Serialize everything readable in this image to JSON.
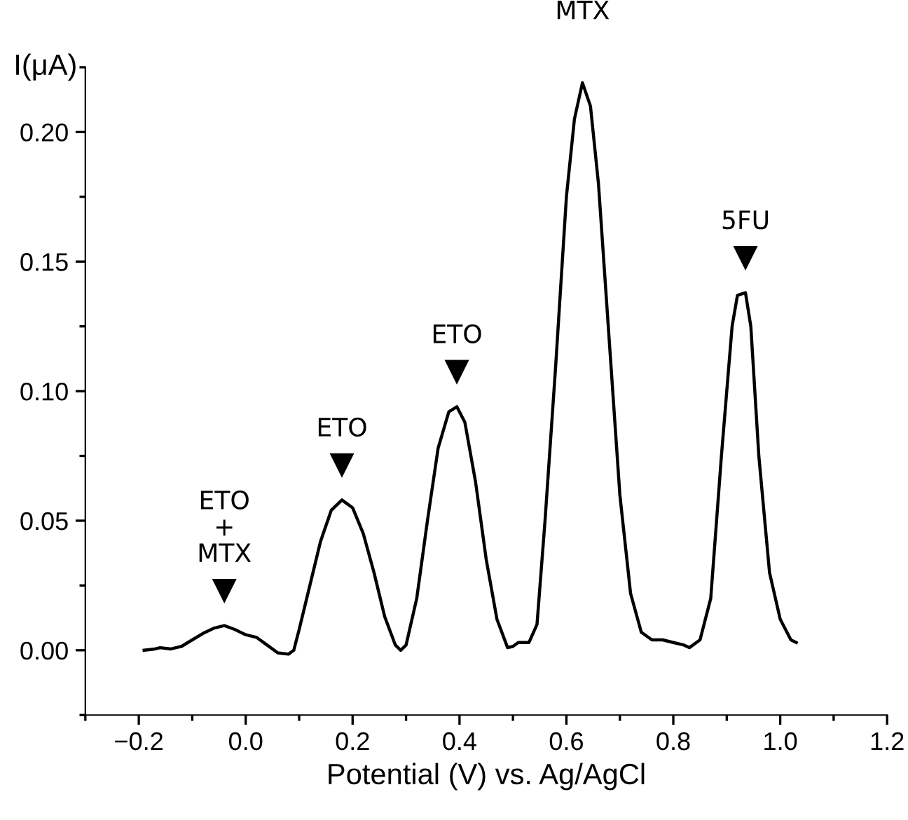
{
  "chart_data": {
    "type": "line",
    "xlabel": "Potential (V) vs. Ag/AgCl",
    "ylabel": "I(μA)",
    "xlim": [
      -0.3,
      1.2
    ],
    "xticks": [
      {
        "value": -0.2,
        "label": "−0.2"
      },
      {
        "value": 0.0,
        "label": "0.0"
      },
      {
        "value": 0.2,
        "label": "0.2"
      },
      {
        "value": 0.4,
        "label": "0.4"
      },
      {
        "value": 0.6,
        "label": "0.6"
      },
      {
        "value": 0.8,
        "label": "0.8"
      },
      {
        "value": 1.0,
        "label": "1.0"
      },
      {
        "value": 1.2,
        "label": "1.2"
      }
    ],
    "ylim": [
      -0.025,
      0.225
    ],
    "yticks": [
      {
        "value": 0.0,
        "label": "0.00"
      },
      {
        "value": 0.05,
        "label": "0.05"
      },
      {
        "value": 0.1,
        "label": "0.10"
      },
      {
        "value": 0.15,
        "label": "0.15"
      },
      {
        "value": 0.2,
        "label": "0.20"
      }
    ],
    "grid": false,
    "legend": false,
    "marker": "none",
    "line_style": "solid",
    "series": [
      {
        "color": "#000000",
        "x": [
          -0.19,
          -0.17,
          -0.16,
          -0.14,
          -0.12,
          -0.1,
          -0.08,
          -0.06,
          -0.04,
          -0.02,
          0.0,
          0.02,
          0.04,
          0.06,
          0.08,
          0.09,
          0.1,
          0.12,
          0.14,
          0.16,
          0.18,
          0.2,
          0.22,
          0.24,
          0.26,
          0.28,
          0.29,
          0.3,
          0.32,
          0.34,
          0.36,
          0.38,
          0.395,
          0.41,
          0.43,
          0.45,
          0.47,
          0.49,
          0.5,
          0.51,
          0.53,
          0.545,
          0.56,
          0.58,
          0.6,
          0.615,
          0.63,
          0.645,
          0.66,
          0.68,
          0.7,
          0.72,
          0.74,
          0.76,
          0.78,
          0.8,
          0.82,
          0.83,
          0.85,
          0.87,
          0.89,
          0.91,
          0.92,
          0.935,
          0.945,
          0.96,
          0.98,
          1.0,
          1.02,
          1.03
        ],
        "values": [
          0.0,
          0.0005,
          0.001,
          0.0005,
          0.0015,
          0.004,
          0.0065,
          0.0085,
          0.0095,
          0.008,
          0.006,
          0.005,
          0.002,
          -0.001,
          -0.0015,
          0.0,
          0.008,
          0.025,
          0.042,
          0.054,
          0.058,
          0.055,
          0.045,
          0.03,
          0.013,
          0.002,
          0.0,
          0.002,
          0.02,
          0.05,
          0.078,
          0.092,
          0.094,
          0.088,
          0.065,
          0.035,
          0.012,
          0.001,
          0.0015,
          0.003,
          0.003,
          0.01,
          0.05,
          0.11,
          0.175,
          0.205,
          0.219,
          0.21,
          0.18,
          0.12,
          0.06,
          0.022,
          0.007,
          0.004,
          0.004,
          0.003,
          0.002,
          0.001,
          0.004,
          0.02,
          0.075,
          0.125,
          0.137,
          0.138,
          0.125,
          0.075,
          0.03,
          0.012,
          0.004,
          0.003
        ]
      }
    ],
    "annotations": [
      {
        "text": "ETO\n+\nMTX",
        "x": -0.04,
        "y": 0.0095
      },
      {
        "text": "ETO",
        "x": 0.18,
        "y": 0.058
      },
      {
        "text": "ETO",
        "x": 0.395,
        "y": 0.094
      },
      {
        "text": "MTX",
        "x": 0.63,
        "y": 0.219
      },
      {
        "text": "5FU",
        "x": 0.935,
        "y": 0.138
      }
    ]
  }
}
